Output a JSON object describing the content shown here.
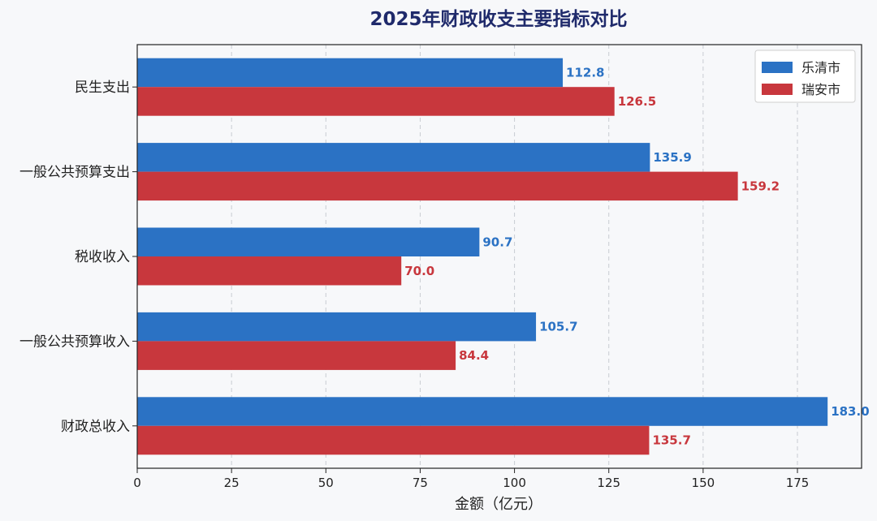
{
  "chart_data": {
    "type": "bar",
    "orientation": "horizontal",
    "title": "2025年财政收支主要指标对比",
    "xlabel": "金额（亿元）",
    "ylabel": "",
    "categories": [
      "财政总收入",
      "一般公共预算收入",
      "税收收入",
      "一般公共预算支出",
      "民生支出"
    ],
    "series": [
      {
        "name": "乐清市",
        "color": "#2b72c4",
        "values": [
          183.0,
          105.7,
          90.7,
          135.9,
          112.8
        ]
      },
      {
        "name": "瑞安市",
        "color": "#c8373d",
        "values": [
          135.7,
          84.4,
          70.0,
          159.2,
          126.5
        ]
      }
    ],
    "xlim": [
      0,
      192
    ],
    "xticks": [
      0,
      25,
      50,
      75,
      100,
      125,
      150,
      175
    ],
    "grid": "vertical dashed",
    "legend": "top-right"
  }
}
